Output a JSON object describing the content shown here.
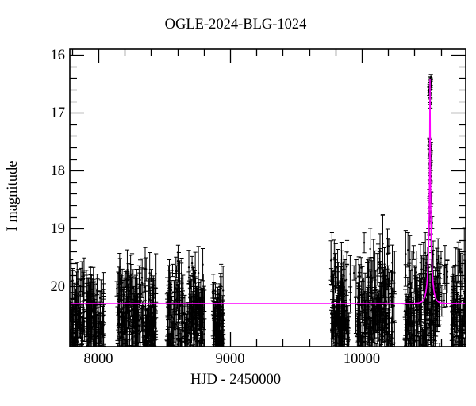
{
  "window": {
    "background": "#ffffff"
  },
  "chart_data": {
    "type": "scatter",
    "title": "OGLE-2024-BLG-1024",
    "xlabel": "HJD - 2450000",
    "ylabel": "I magnitude",
    "xlim": [
      7783,
      10789
    ],
    "ylim_top": 15.9,
    "ylim_bottom": 21.04,
    "y_axis_inverted": true,
    "grid": false,
    "legend": "none",
    "point_color": "#000000",
    "model_color": "#ff00ff",
    "background_color": "#ffffff",
    "x_tick_values": [
      8000,
      9000,
      10000
    ],
    "x_tick_labels": [
      "8000",
      "9000",
      "10000"
    ],
    "x_minor_step": 200,
    "y_tick_values": [
      16,
      17,
      18,
      19,
      20
    ],
    "y_tick_labels": [
      "16",
      "17",
      "18",
      "19",
      "20"
    ],
    "y_minor_step": 0.2,
    "baseline_magnitude": 20.3,
    "event": {
      "t0": 10518,
      "tE": 25,
      "u0": 0.0276,
      "peak_magnitude": 16.4
    },
    "seasons": [
      {
        "hjd_start": 7783,
        "hjd_end": 8040,
        "n": 210,
        "mag_mean": 20.65,
        "mag_sigma": 0.42,
        "mag_min": 19.85,
        "n_outliers": 2
      },
      {
        "hjd_start": 8139,
        "hjd_end": 8440,
        "n": 240,
        "mag_mean": 20.6,
        "mag_sigma": 0.46,
        "mag_min": 19.7,
        "n_outliers": 3
      },
      {
        "hjd_start": 8518,
        "hjd_end": 8807,
        "n": 230,
        "mag_mean": 20.6,
        "mag_sigma": 0.46,
        "mag_min": 19.55,
        "n_outliers": 3
      },
      {
        "hjd_start": 8867,
        "hjd_end": 8952,
        "n": 100,
        "mag_mean": 20.7,
        "mag_sigma": 0.42,
        "mag_min": 19.8,
        "n_outliers": 1
      },
      {
        "hjd_start": 9765,
        "hjd_end": 9904,
        "n": 120,
        "mag_mean": 20.55,
        "mag_sigma": 0.5,
        "mag_min": 19.35,
        "n_outliers": 3
      },
      {
        "hjd_start": 9905,
        "hjd_end": 9960,
        "n": 4,
        "mag_mean": 20.3,
        "mag_sigma": 0.35,
        "mag_min": 19.6,
        "n_outliers": 1
      },
      {
        "hjd_start": 9964,
        "hjd_end": 10253,
        "n": 210,
        "mag_mean": 20.55,
        "mag_sigma": 0.52,
        "mag_min": 19.2,
        "n_outliers": 4
      },
      {
        "hjd_start": 10325,
        "hjd_end": 10596,
        "n": 215,
        "mag_mean": 20.5,
        "mag_sigma": 0.5,
        "mag_min": 19.25,
        "n_outliers": 4
      },
      {
        "hjd_start": 10600,
        "hjd_end": 10670,
        "n": 6,
        "mag_mean": 20.3,
        "mag_sigma": 0.4,
        "mag_min": 19.5,
        "n_outliers": 2
      },
      {
        "hjd_start": 10675,
        "hjd_end": 10789,
        "n": 95,
        "mag_mean": 20.5,
        "mag_sigma": 0.45,
        "mag_min": 19.45,
        "n_outliers": 2
      }
    ],
    "event_column_mags": [
      16.38,
      16.43,
      16.46,
      16.5,
      16.53,
      16.56,
      16.6,
      16.63,
      16.66,
      16.76,
      16.8,
      16.84,
      17.5,
      17.54,
      17.58,
      17.62,
      17.66,
      17.71,
      17.76,
      17.81,
      17.86,
      17.91,
      17.96,
      18.01,
      18.06,
      18.1,
      18.27,
      18.33,
      18.4,
      18.47,
      18.55,
      18.63,
      18.72,
      18.81,
      18.9,
      19.0,
      19.1,
      19.2,
      19.3,
      19.45,
      19.6,
      19.8
    ]
  }
}
